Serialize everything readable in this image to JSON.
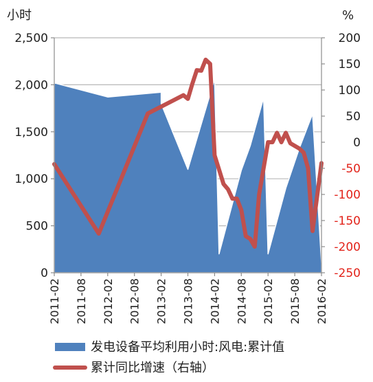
{
  "chart_data": {
    "type": "area+line",
    "left_unit": "小时",
    "right_unit": "%",
    "left_axis": {
      "min": 0,
      "max": 2500,
      "ticks": [
        "0",
        "500",
        "1,000",
        "1,500",
        "2,000",
        "2,500"
      ],
      "tick_values": [
        0,
        500,
        1000,
        1500,
        2000,
        2500
      ]
    },
    "right_axis": {
      "min": -250,
      "max": 200,
      "ticks": [
        "200",
        "150",
        "100",
        "50",
        "0",
        "-50",
        "-100",
        "-150",
        "-200",
        "-250"
      ],
      "tick_values": [
        200,
        150,
        100,
        50,
        0,
        -50,
        -100,
        -150,
        -200,
        -250
      ]
    },
    "x_labels": [
      "2011-02",
      "2011-08",
      "2012-02",
      "2012-08",
      "2013-02",
      "2013-08",
      "2014-02",
      "2014-08",
      "2015-02",
      "2015-08",
      "2016-02"
    ],
    "series": [
      {
        "name": "发电设备平均利用小时:风电:累计值",
        "kind": "area",
        "axis": "left",
        "color": "#4f81bd",
        "points": [
          [
            "2011-02",
            2020
          ],
          [
            "2012-02",
            1870
          ],
          [
            "2013-02",
            1920
          ],
          [
            "2013-02",
            1800
          ],
          [
            "2013-08",
            1100
          ],
          [
            "2014-02",
            2060
          ],
          [
            "2014-03",
            200
          ],
          [
            "2014-08",
            1090
          ],
          [
            "2014-10",
            1350
          ],
          [
            "2015-01",
            1860
          ],
          [
            "2015-02",
            200
          ],
          [
            "2015-06",
            900
          ],
          [
            "2015-09",
            1320
          ],
          [
            "2015-12",
            1690
          ],
          [
            "2016-02",
            100
          ]
        ]
      },
      {
        "name": "累计同比增速（右轴）",
        "kind": "line",
        "axis": "right",
        "color": "#c0504d",
        "points": [
          [
            "2011-02",
            -42
          ],
          [
            "2011-12",
            -175
          ],
          [
            "2012-11",
            55
          ],
          [
            "2013-07",
            90
          ],
          [
            "2013-08",
            83
          ],
          [
            "2013-09",
            112
          ],
          [
            "2013-10",
            138
          ],
          [
            "2013-11",
            137
          ],
          [
            "2013-12",
            158
          ],
          [
            "2014-01",
            150
          ],
          [
            "2014-02",
            -25
          ],
          [
            "2014-04",
            -80
          ],
          [
            "2014-05",
            -90
          ],
          [
            "2014-06",
            -108
          ],
          [
            "2014-07",
            -108
          ],
          [
            "2014-08",
            -130
          ],
          [
            "2014-09",
            -180
          ],
          [
            "2014-10",
            -185
          ],
          [
            "2014-11",
            -200
          ],
          [
            "2014-12",
            -100
          ],
          [
            "2015-02",
            0
          ],
          [
            "2015-03",
            0
          ],
          [
            "2015-04",
            18
          ],
          [
            "2015-05",
            0
          ],
          [
            "2015-06",
            18
          ],
          [
            "2015-07",
            -2
          ],
          [
            "2015-09",
            -12
          ],
          [
            "2015-10",
            -20
          ],
          [
            "2015-11",
            -50
          ],
          [
            "2015-12",
            -170
          ],
          [
            "2016-02",
            -40
          ]
        ]
      }
    ]
  }
}
